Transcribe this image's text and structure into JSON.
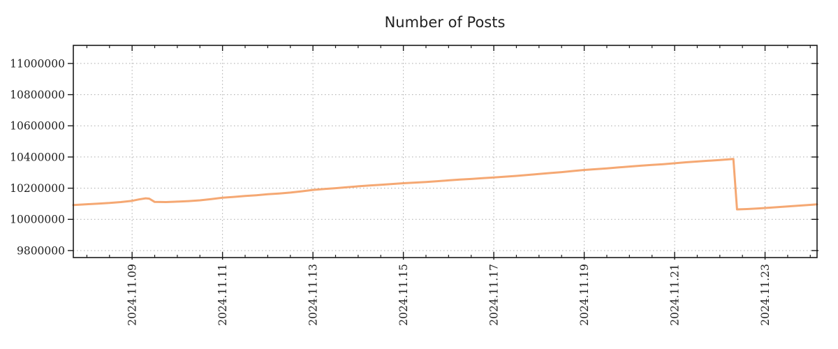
{
  "page": {
    "title": "Number of Posts"
  },
  "colors": {
    "background": "#FFFFFF",
    "line": "#F5A873",
    "grid": "#AAAAAA",
    "frame": "#1A1A1A",
    "text": "#222222"
  },
  "chart_data": {
    "type": "line",
    "title": "Number of Posts",
    "xlabel": "",
    "ylabel": "",
    "grid": true,
    "legend": "none",
    "x_axis": {
      "unit": "date (November 2024, day-of-month)",
      "range_days": [
        7.7,
        24.15
      ],
      "minor_tick_interval_days": 0.5,
      "major_ticks": [
        {
          "day": 9,
          "label": "2024.11.09"
        },
        {
          "day": 11,
          "label": "2024.11.11"
        },
        {
          "day": 13,
          "label": "2024.11.13"
        },
        {
          "day": 15,
          "label": "2024.11.15"
        },
        {
          "day": 17,
          "label": "2024.11.17"
        },
        {
          "day": 19,
          "label": "2024.11.19"
        },
        {
          "day": 21,
          "label": "2024.11.21"
        },
        {
          "day": 23,
          "label": "2024.11.23"
        }
      ]
    },
    "y_axis": {
      "range": [
        9755000,
        11116000
      ],
      "ticks": [
        9800000,
        10000000,
        10200000,
        10400000,
        10600000,
        10800000,
        11000000
      ],
      "tick_labels": [
        "9800000",
        "10000000",
        "10200000",
        "10400000",
        "10600000",
        "10800000",
        "11000000"
      ]
    },
    "series": [
      {
        "name": "number-of-posts",
        "color": "#F5A873",
        "points": [
          [
            7.7,
            10092000
          ],
          [
            8.0,
            10097000
          ],
          [
            8.25,
            10101000
          ],
          [
            8.5,
            10105000
          ],
          [
            8.75,
            10111000
          ],
          [
            9.0,
            10119000
          ],
          [
            9.15,
            10128000
          ],
          [
            9.3,
            10135000
          ],
          [
            9.38,
            10133000
          ],
          [
            9.5,
            10112000
          ],
          [
            9.75,
            10111000
          ],
          [
            9.95,
            10113000
          ],
          [
            10.25,
            10117000
          ],
          [
            10.5,
            10122000
          ],
          [
            10.75,
            10130000
          ],
          [
            11.0,
            10139000
          ],
          [
            11.25,
            10144000
          ],
          [
            11.5,
            10150000
          ],
          [
            11.75,
            10155000
          ],
          [
            12.0,
            10161000
          ],
          [
            12.25,
            10166000
          ],
          [
            12.5,
            10172000
          ],
          [
            12.75,
            10180000
          ],
          [
            13.0,
            10189000
          ],
          [
            13.25,
            10195000
          ],
          [
            13.5,
            10200000
          ],
          [
            13.75,
            10206000
          ],
          [
            14.0,
            10212000
          ],
          [
            14.25,
            10217000
          ],
          [
            14.5,
            10222000
          ],
          [
            14.75,
            10227000
          ],
          [
            15.0,
            10232000
          ],
          [
            15.25,
            10236000
          ],
          [
            15.5,
            10240000
          ],
          [
            15.75,
            10245000
          ],
          [
            16.0,
            10250000
          ],
          [
            16.25,
            10255000
          ],
          [
            16.5,
            10259000
          ],
          [
            16.75,
            10264000
          ],
          [
            17.0,
            10269000
          ],
          [
            17.25,
            10274000
          ],
          [
            17.5,
            10279000
          ],
          [
            17.75,
            10285000
          ],
          [
            18.0,
            10291000
          ],
          [
            18.25,
            10297000
          ],
          [
            18.5,
            10303000
          ],
          [
            18.75,
            10310000
          ],
          [
            19.0,
            10317000
          ],
          [
            19.25,
            10322000
          ],
          [
            19.5,
            10327000
          ],
          [
            19.75,
            10333000
          ],
          [
            20.0,
            10339000
          ],
          [
            20.25,
            10344000
          ],
          [
            20.5,
            10349000
          ],
          [
            20.75,
            10354000
          ],
          [
            21.0,
            10360000
          ],
          [
            21.25,
            10366000
          ],
          [
            21.5,
            10371000
          ],
          [
            21.75,
            10376000
          ],
          [
            22.0,
            10381000
          ],
          [
            22.3,
            10387000
          ],
          [
            22.38,
            10064000
          ],
          [
            22.6,
            10066000
          ],
          [
            22.85,
            10070000
          ],
          [
            23.0,
            10073000
          ],
          [
            23.25,
            10078000
          ],
          [
            23.5,
            10083000
          ],
          [
            23.75,
            10088000
          ],
          [
            24.0,
            10093000
          ],
          [
            24.15,
            10096000
          ]
        ]
      }
    ]
  }
}
